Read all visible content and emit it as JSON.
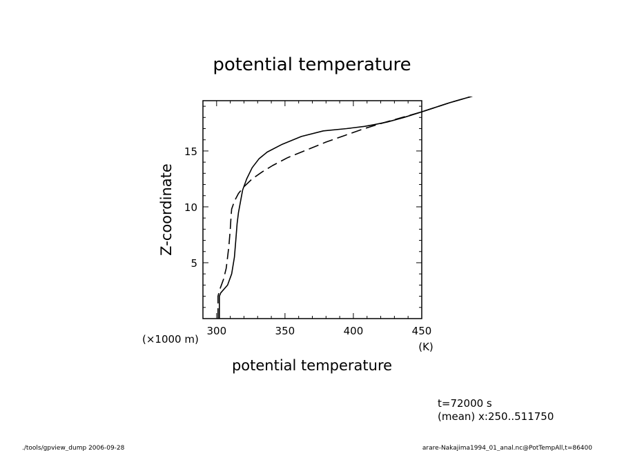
{
  "chart_data": {
    "type": "line",
    "title": "potential temperature",
    "xlabel": "potential temperature",
    "xunit": "(K)",
    "ylabel": "Z-coordinate",
    "yunit": "(×1000 m)",
    "xlim": [
      290,
      450
    ],
    "ylim": [
      0,
      19.5
    ],
    "xticks": [
      300,
      350,
      400,
      450
    ],
    "yticks": [
      5,
      10,
      15
    ],
    "grid": false,
    "legend": "none",
    "series": [
      {
        "style": "solid",
        "points": [
          [
            302,
            0
          ],
          [
            302,
            2.0
          ],
          [
            303,
            2.3
          ],
          [
            308,
            3.0
          ],
          [
            311,
            4.0
          ],
          [
            313,
            5.5
          ],
          [
            314,
            7.0
          ],
          [
            315,
            8.5
          ],
          [
            316,
            9.5
          ],
          [
            317.5,
            10.5
          ],
          [
            319,
            11.5
          ],
          [
            322,
            12.5
          ],
          [
            326,
            13.5
          ],
          [
            331,
            14.3
          ],
          [
            337,
            14.9
          ],
          [
            348,
            15.6
          ],
          [
            362,
            16.3
          ],
          [
            378,
            16.8
          ],
          [
            395,
            17.0
          ],
          [
            408,
            17.2
          ],
          [
            415,
            17.35
          ],
          [
            425,
            17.6
          ],
          [
            437,
            18.0
          ],
          [
            450,
            18.5
          ],
          [
            470,
            19.3
          ],
          [
            487,
            19.9
          ]
        ]
      },
      {
        "style": "dashed",
        "points": [
          [
            301,
            0
          ],
          [
            301,
            2.0
          ],
          [
            302,
            2.5
          ],
          [
            305,
            3.5
          ],
          [
            307,
            4.5
          ],
          [
            308,
            5.5
          ],
          [
            309,
            6.5
          ],
          [
            310,
            8.0
          ],
          [
            310.5,
            9.0
          ],
          [
            311,
            9.8
          ],
          [
            313,
            10.5
          ],
          [
            316,
            11.2
          ],
          [
            320,
            11.8
          ],
          [
            326,
            12.5
          ],
          [
            333,
            13.1
          ],
          [
            341,
            13.7
          ],
          [
            352,
            14.4
          ],
          [
            366,
            15.1
          ],
          [
            380,
            15.8
          ],
          [
            394,
            16.4
          ],
          [
            408,
            17.0
          ],
          [
            420,
            17.45
          ],
          [
            430,
            17.8
          ],
          [
            450,
            18.5
          ],
          [
            470,
            19.3
          ],
          [
            487,
            19.9
          ]
        ]
      }
    ]
  },
  "annotations": {
    "time": "t=72000 s",
    "mean": "(mean) x:250..511750"
  },
  "footer": {
    "left": "./tools/gpview_dump  2006-09-28",
    "right": "arare-Nakajima1994_01_anal.nc@PotTempAll,t=86400"
  }
}
